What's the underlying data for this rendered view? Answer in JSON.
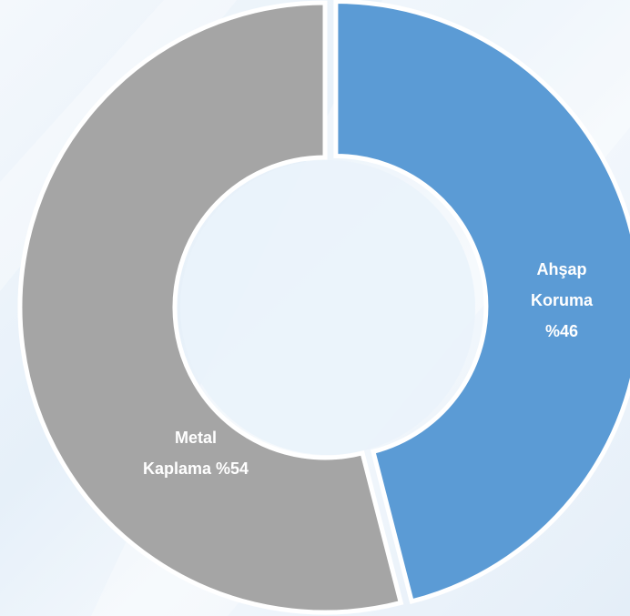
{
  "chart_data": {
    "type": "donut",
    "categories": [
      "Ahşap Koruma",
      "Metal Kaplama"
    ],
    "values": [
      46,
      54
    ],
    "value_labels": [
      "%46",
      "%54"
    ],
    "colors": [
      "#5b9bd5",
      "#a5a5a5"
    ]
  }
}
